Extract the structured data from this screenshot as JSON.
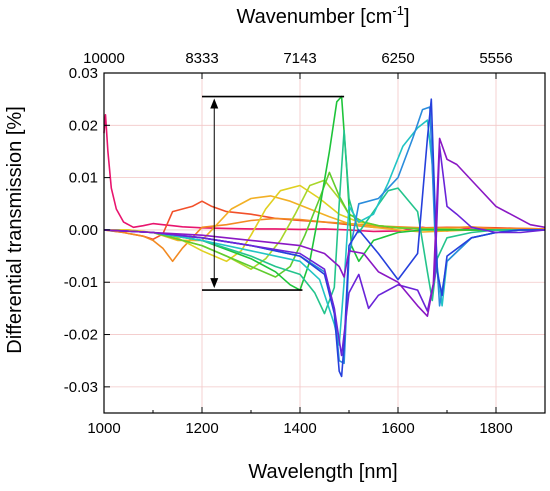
{
  "chart_data": {
    "type": "line",
    "xlabel": "Wavelength [nm]",
    "ylabel": "Differential transmission [%]",
    "top_axis_label": "Wavenumber [cm",
    "top_axis_label_superscript": "-1",
    "top_axis_label_suffix": "]",
    "xlim": [
      1000,
      1900
    ],
    "ylim": [
      -0.035,
      0.03
    ],
    "x_ticks": [
      1000,
      1200,
      1400,
      1600,
      1800
    ],
    "x_tick_labels": [
      "1000",
      "1200",
      "1400",
      "1600",
      "1800"
    ],
    "y_ticks": [
      -0.03,
      -0.02,
      -0.01,
      0.0,
      0.01,
      0.02,
      0.03
    ],
    "y_tick_labels": [
      "-0.03",
      "-0.02",
      "-0.01",
      "0.00",
      "0.01",
      "0.02",
      "0.03"
    ],
    "top_ticks_wavelength": [
      1000,
      1200,
      1400,
      1600,
      1800
    ],
    "top_tick_labels": [
      "10000",
      "8333",
      "7143",
      "6250",
      "5556"
    ],
    "grid": true,
    "annotation": {
      "type": "double-arrow",
      "x": 1225,
      "y_top": 0.0255,
      "y_bottom": -0.0115,
      "top_line_x": [
        1200,
        1490
      ],
      "bottom_line_x": [
        1200,
        1405
      ]
    },
    "series": [
      {
        "color": "#e8156e",
        "x": [
          1000,
          1003,
          1008,
          1015,
          1025,
          1040,
          1060,
          1080,
          1100,
          1120,
          1140,
          1160,
          1180,
          1200,
          1250,
          1300,
          1350,
          1400,
          1450,
          1500,
          1550,
          1600,
          1650,
          1700,
          1750,
          1800,
          1850,
          1900
        ],
        "y": [
          0.0185,
          0.022,
          0.015,
          0.008,
          0.004,
          0.0015,
          0.0005,
          0.0008,
          0.0012,
          0.001,
          0.0008,
          0.0006,
          0.0005,
          0.0004,
          0.0003,
          0.0002,
          0.0002,
          0.0001,
          0.0002,
          0.0,
          -0.0003,
          -0.0002,
          0.0005,
          -0.0002,
          0.0004,
          0.0002,
          0.0001,
          0.0
        ]
      },
      {
        "color": "#f2502a",
        "x": [
          1000,
          1040,
          1080,
          1100,
          1120,
          1140,
          1160,
          1180,
          1200,
          1220,
          1250,
          1300,
          1350,
          1400,
          1450,
          1500,
          1550,
          1600,
          1650,
          1700,
          1750,
          1800,
          1850,
          1900
        ],
        "y": [
          0.0,
          -0.0005,
          -0.0012,
          -0.0018,
          -0.0008,
          0.0035,
          0.004,
          0.0045,
          0.0055,
          0.0045,
          0.0035,
          0.003,
          0.0022,
          0.0018,
          0.0015,
          0.001,
          0.0005,
          0.0004,
          0.0004,
          0.0005,
          0.0005,
          0.0004,
          0.0003,
          0.0002
        ]
      },
      {
        "color": "#f28a22",
        "x": [
          1000,
          1040,
          1080,
          1100,
          1120,
          1140,
          1160,
          1180,
          1200,
          1250,
          1300,
          1350,
          1400,
          1450,
          1500,
          1550,
          1600,
          1650,
          1700,
          1750,
          1800,
          1850,
          1900
        ],
        "y": [
          0.0,
          -0.0005,
          -0.0012,
          -0.002,
          -0.0035,
          -0.006,
          -0.0035,
          -0.0015,
          0.0005,
          0.001,
          0.0018,
          0.0022,
          0.002,
          0.0015,
          0.0012,
          0.0008,
          0.0006,
          0.0004,
          0.0004,
          0.0006,
          0.0002,
          0.0003,
          0.0002
        ]
      },
      {
        "color": "#f2b025",
        "x": [
          1000,
          1050,
          1100,
          1150,
          1200,
          1230,
          1260,
          1300,
          1340,
          1380,
          1420,
          1460,
          1500,
          1550,
          1600,
          1650,
          1700,
          1750,
          1800,
          1850,
          1900
        ],
        "y": [
          0.0,
          0.0,
          -0.0005,
          -0.002,
          -0.002,
          0.001,
          0.004,
          0.006,
          0.0065,
          0.0055,
          0.004,
          0.0025,
          0.0012,
          0.0005,
          0.0,
          -0.0004,
          -0.0002,
          0.0,
          0.0,
          0.0,
          0.0
        ]
      },
      {
        "color": "#e0d020",
        "x": [
          1000,
          1050,
          1100,
          1150,
          1200,
          1250,
          1280,
          1300,
          1330,
          1360,
          1400,
          1440,
          1480,
          1520,
          1560,
          1600,
          1650,
          1700,
          1750,
          1800,
          1850,
          1900
        ],
        "y": [
          0.0,
          0.0,
          -0.0005,
          -0.0015,
          -0.004,
          -0.006,
          -0.004,
          -0.001,
          0.004,
          0.0075,
          0.0085,
          0.006,
          0.003,
          0.0015,
          0.0008,
          0.0004,
          0.0002,
          0.0002,
          0.0,
          0.0,
          0.0,
          0.0
        ]
      },
      {
        "color": "#a8d62a",
        "x": [
          1000,
          1100,
          1200,
          1250,
          1300,
          1330,
          1360,
          1390,
          1420,
          1450,
          1480,
          1500,
          1530,
          1560,
          1600,
          1650,
          1700,
          1750,
          1800,
          1850,
          1900
        ],
        "y": [
          0.0,
          -0.0005,
          -0.003,
          -0.005,
          -0.0075,
          -0.0055,
          -0.002,
          0.003,
          0.0085,
          0.0095,
          0.006,
          0.003,
          0.0015,
          0.0008,
          0.0004,
          0.0002,
          0.0001,
          0.0,
          0.0,
          0.0,
          0.0
        ]
      },
      {
        "color": "#60cc2e",
        "x": [
          1000,
          1100,
          1200,
          1250,
          1300,
          1350,
          1380,
          1410,
          1440,
          1460,
          1480,
          1500,
          1530,
          1560,
          1600,
          1650,
          1700,
          1750,
          1800,
          1850,
          1900
        ],
        "y": [
          0.0,
          -0.0005,
          -0.003,
          -0.005,
          -0.007,
          -0.009,
          -0.007,
          -0.001,
          0.006,
          0.011,
          0.0065,
          0.003,
          0.0015,
          0.0008,
          0.0004,
          0.0002,
          0.0001,
          0.0,
          0.0,
          0.0,
          0.0
        ]
      },
      {
        "color": "#1ec43a",
        "x": [
          1000,
          1100,
          1200,
          1300,
          1350,
          1380,
          1400,
          1420,
          1440,
          1460,
          1475,
          1485,
          1495,
          1505,
          1520,
          1550,
          1600,
          1650,
          1700,
          1750,
          1800,
          1850,
          1900
        ],
        "y": [
          0.0,
          -0.0005,
          -0.002,
          -0.0055,
          -0.008,
          -0.0105,
          -0.0115,
          -0.006,
          0.004,
          0.015,
          0.0245,
          0.0255,
          0.012,
          -0.003,
          -0.006,
          -0.002,
          -0.0005,
          0.0,
          0.0,
          0.0,
          0.0,
          0.0,
          0.0
        ]
      },
      {
        "color": "#24c48c",
        "x": [
          1000,
          1100,
          1200,
          1300,
          1350,
          1400,
          1430,
          1450,
          1470,
          1480,
          1490,
          1500,
          1520,
          1550,
          1580,
          1600,
          1640,
          1660,
          1670,
          1680,
          1700,
          1750,
          1800,
          1850,
          1900
        ],
        "y": [
          0.0,
          -0.0005,
          -0.002,
          -0.005,
          -0.007,
          -0.0085,
          -0.012,
          -0.016,
          -0.011,
          0.005,
          0.019,
          0.006,
          -0.0005,
          0.0035,
          0.0075,
          0.008,
          0.0035,
          -0.008,
          -0.0135,
          -0.0055,
          -0.0015,
          -0.0005,
          0.0,
          0.0,
          0.0
        ]
      },
      {
        "color": "#22c4c4",
        "x": [
          1000,
          1100,
          1200,
          1300,
          1400,
          1440,
          1470,
          1480,
          1490,
          1500,
          1520,
          1550,
          1580,
          1610,
          1640,
          1660,
          1670,
          1680,
          1690,
          1700,
          1750,
          1800,
          1850,
          1900
        ],
        "y": [
          0.0,
          -0.0005,
          -0.002,
          -0.004,
          -0.006,
          -0.0095,
          -0.018,
          -0.022,
          -0.01,
          0.0045,
          0.0015,
          0.003,
          0.009,
          0.016,
          0.0195,
          0.021,
          0.0125,
          -0.007,
          -0.0145,
          -0.006,
          -0.0015,
          -0.0005,
          0.0,
          0.0
        ]
      },
      {
        "color": "#2a8cdc",
        "x": [
          1000,
          1100,
          1200,
          1300,
          1400,
          1450,
          1470,
          1480,
          1490,
          1500,
          1520,
          1560,
          1600,
          1630,
          1650,
          1665,
          1675,
          1685,
          1700,
          1750,
          1800,
          1850,
          1900
        ],
        "y": [
          0.0,
          -0.0005,
          -0.0015,
          -0.003,
          -0.005,
          -0.008,
          -0.015,
          -0.025,
          -0.0255,
          -0.005,
          0.005,
          0.006,
          0.01,
          0.0175,
          0.023,
          0.0235,
          0.0,
          -0.0145,
          -0.006,
          -0.0015,
          -0.0005,
          0.0,
          0.0
        ]
      },
      {
        "color": "#2640dc",
        "x": [
          1000,
          1100,
          1200,
          1300,
          1400,
          1450,
          1470,
          1480,
          1485,
          1490,
          1500,
          1520,
          1560,
          1600,
          1640,
          1660,
          1668,
          1680,
          1690,
          1700,
          1750,
          1800,
          1850,
          1900
        ],
        "y": [
          0.0,
          -0.0005,
          -0.0015,
          -0.003,
          -0.005,
          -0.0085,
          -0.016,
          -0.027,
          -0.028,
          -0.022,
          -0.003,
          0.0,
          -0.0045,
          -0.0095,
          -0.0045,
          0.0175,
          0.025,
          -0.008,
          -0.0125,
          -0.005,
          -0.0015,
          -0.0005,
          0.0,
          0.0
        ]
      },
      {
        "color": "#6a24d8",
        "x": [
          1000,
          1100,
          1200,
          1300,
          1400,
          1450,
          1470,
          1485,
          1500,
          1520,
          1540,
          1560,
          1600,
          1640,
          1660,
          1675,
          1685,
          1700,
          1720,
          1750,
          1800,
          1850,
          1900
        ],
        "y": [
          0.0,
          -0.0005,
          -0.0015,
          -0.003,
          -0.0045,
          -0.0075,
          -0.015,
          -0.024,
          -0.012,
          -0.0085,
          -0.015,
          -0.0125,
          -0.0105,
          -0.0115,
          -0.0155,
          -0.009,
          0.016,
          0.0045,
          0.003,
          0.0005,
          -0.0005,
          -0.0005,
          0.0
        ]
      },
      {
        "color": "#8a18c4",
        "x": [
          1000,
          1100,
          1200,
          1300,
          1400,
          1450,
          1480,
          1490,
          1500,
          1530,
          1560,
          1600,
          1640,
          1660,
          1672,
          1685,
          1700,
          1720,
          1760,
          1800,
          1840,
          1870,
          1900
        ],
        "y": [
          0.0,
          -0.0005,
          -0.001,
          -0.002,
          -0.003,
          -0.0045,
          -0.007,
          -0.009,
          -0.004,
          -0.0045,
          -0.008,
          -0.01,
          -0.0145,
          -0.0165,
          -0.0105,
          0.0175,
          0.0135,
          0.0125,
          0.0085,
          0.0045,
          0.0025,
          0.001,
          0.0005
        ]
      }
    ]
  }
}
